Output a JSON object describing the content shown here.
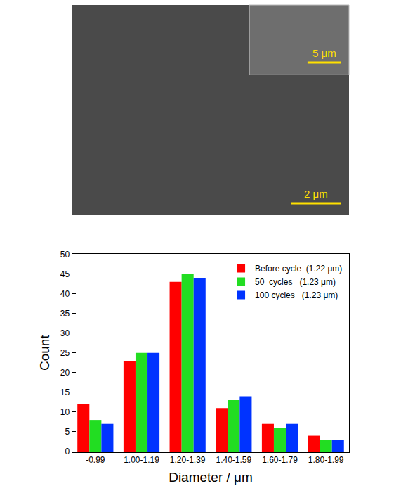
{
  "chart_data": {
    "type": "bar",
    "x_label": "Diameter / μm",
    "y_label": "Count",
    "categories": [
      "-0.99",
      "1.00-1.19",
      "1.20-1.39",
      "1.40-1.59",
      "1.60-1.79",
      "1.80-1.99"
    ],
    "series": [
      {
        "name": "Before cycle  (1.22 μm)",
        "color": "#ff0000",
        "values": [
          12,
          23,
          43,
          11,
          7,
          4
        ]
      },
      {
        "name": "50  cycles   (1.23 μm)",
        "color": "#22dd22",
        "values": [
          8,
          25,
          45,
          13,
          6,
          3
        ]
      },
      {
        "name": "100 cycles   (1.23 μm)",
        "color": "#0033ff",
        "values": [
          7,
          25,
          44,
          14,
          7,
          3
        ]
      }
    ],
    "ylim": [
      0,
      50
    ],
    "yticks": [
      0,
      5,
      10,
      15,
      20,
      25,
      30,
      35,
      40,
      45,
      50
    ],
    "grid": false,
    "legend": "upper right"
  },
  "micrograph": {
    "scale_bars": [
      {
        "label": "5 μm"
      },
      {
        "label": "2 μm"
      }
    ]
  }
}
